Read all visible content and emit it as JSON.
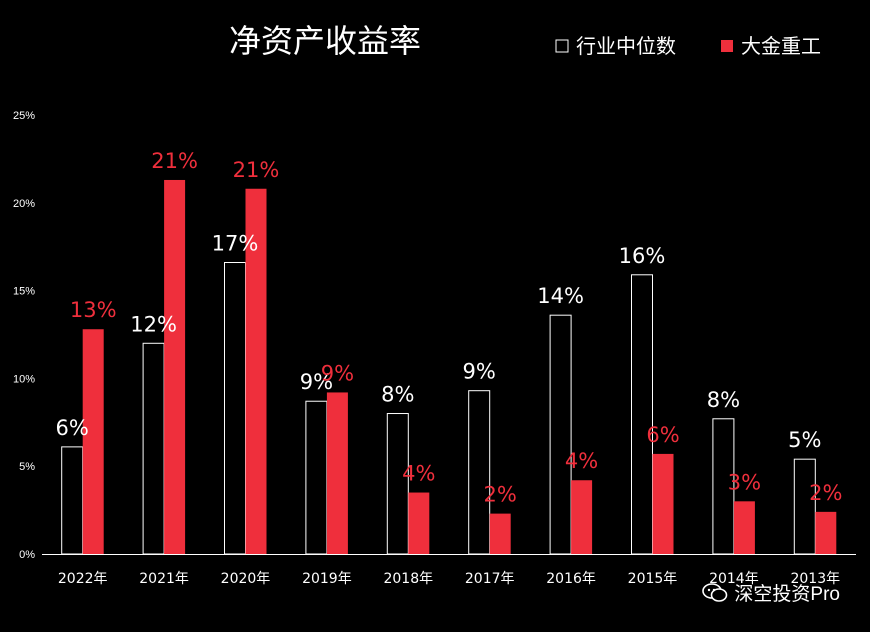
{
  "chart_data": {
    "type": "bar",
    "title": "净资产收益率",
    "categories": [
      "2022年",
      "2021年",
      "2020年",
      "2019年",
      "2018年",
      "2017年",
      "2016年",
      "2015年",
      "2014年",
      "2013年"
    ],
    "series": [
      {
        "name": "行业中位数",
        "values": [
          6.1,
          12.0,
          16.6,
          8.7,
          8.0,
          9.3,
          13.6,
          15.9,
          7.7,
          5.4
        ],
        "labels": [
          "6%",
          "12%",
          "17%",
          "9%",
          "8%",
          "9%",
          "14%",
          "16%",
          "8%",
          "5%"
        ],
        "fill": "#000000",
        "stroke": "#ffffff",
        "label_color": "#ffffff"
      },
      {
        "name": "大金重工",
        "values": [
          12.8,
          21.3,
          20.8,
          9.2,
          3.5,
          2.3,
          4.2,
          5.7,
          3.0,
          2.4
        ],
        "labels": [
          "13%",
          "21%",
          "21%",
          "9%",
          "4%",
          "2%",
          "4%",
          "6%",
          "3%",
          "2%"
        ],
        "fill": "#ef2f3c",
        "stroke": "#ef2f3c",
        "label_color": "#ef2f3c"
      }
    ],
    "yticks": [
      "25%",
      "20%",
      "15%",
      "10%",
      "5%",
      "0%"
    ],
    "ylim": [
      0,
      25
    ],
    "legend_position": "top-right",
    "grid": false,
    "colors": {
      "background": "#000000",
      "axis": "#ffffff",
      "text": "#ffffff",
      "accent": "#ef2f3c"
    }
  },
  "watermark": {
    "text": "深空投资Pro",
    "icon": "wechat-icon"
  }
}
